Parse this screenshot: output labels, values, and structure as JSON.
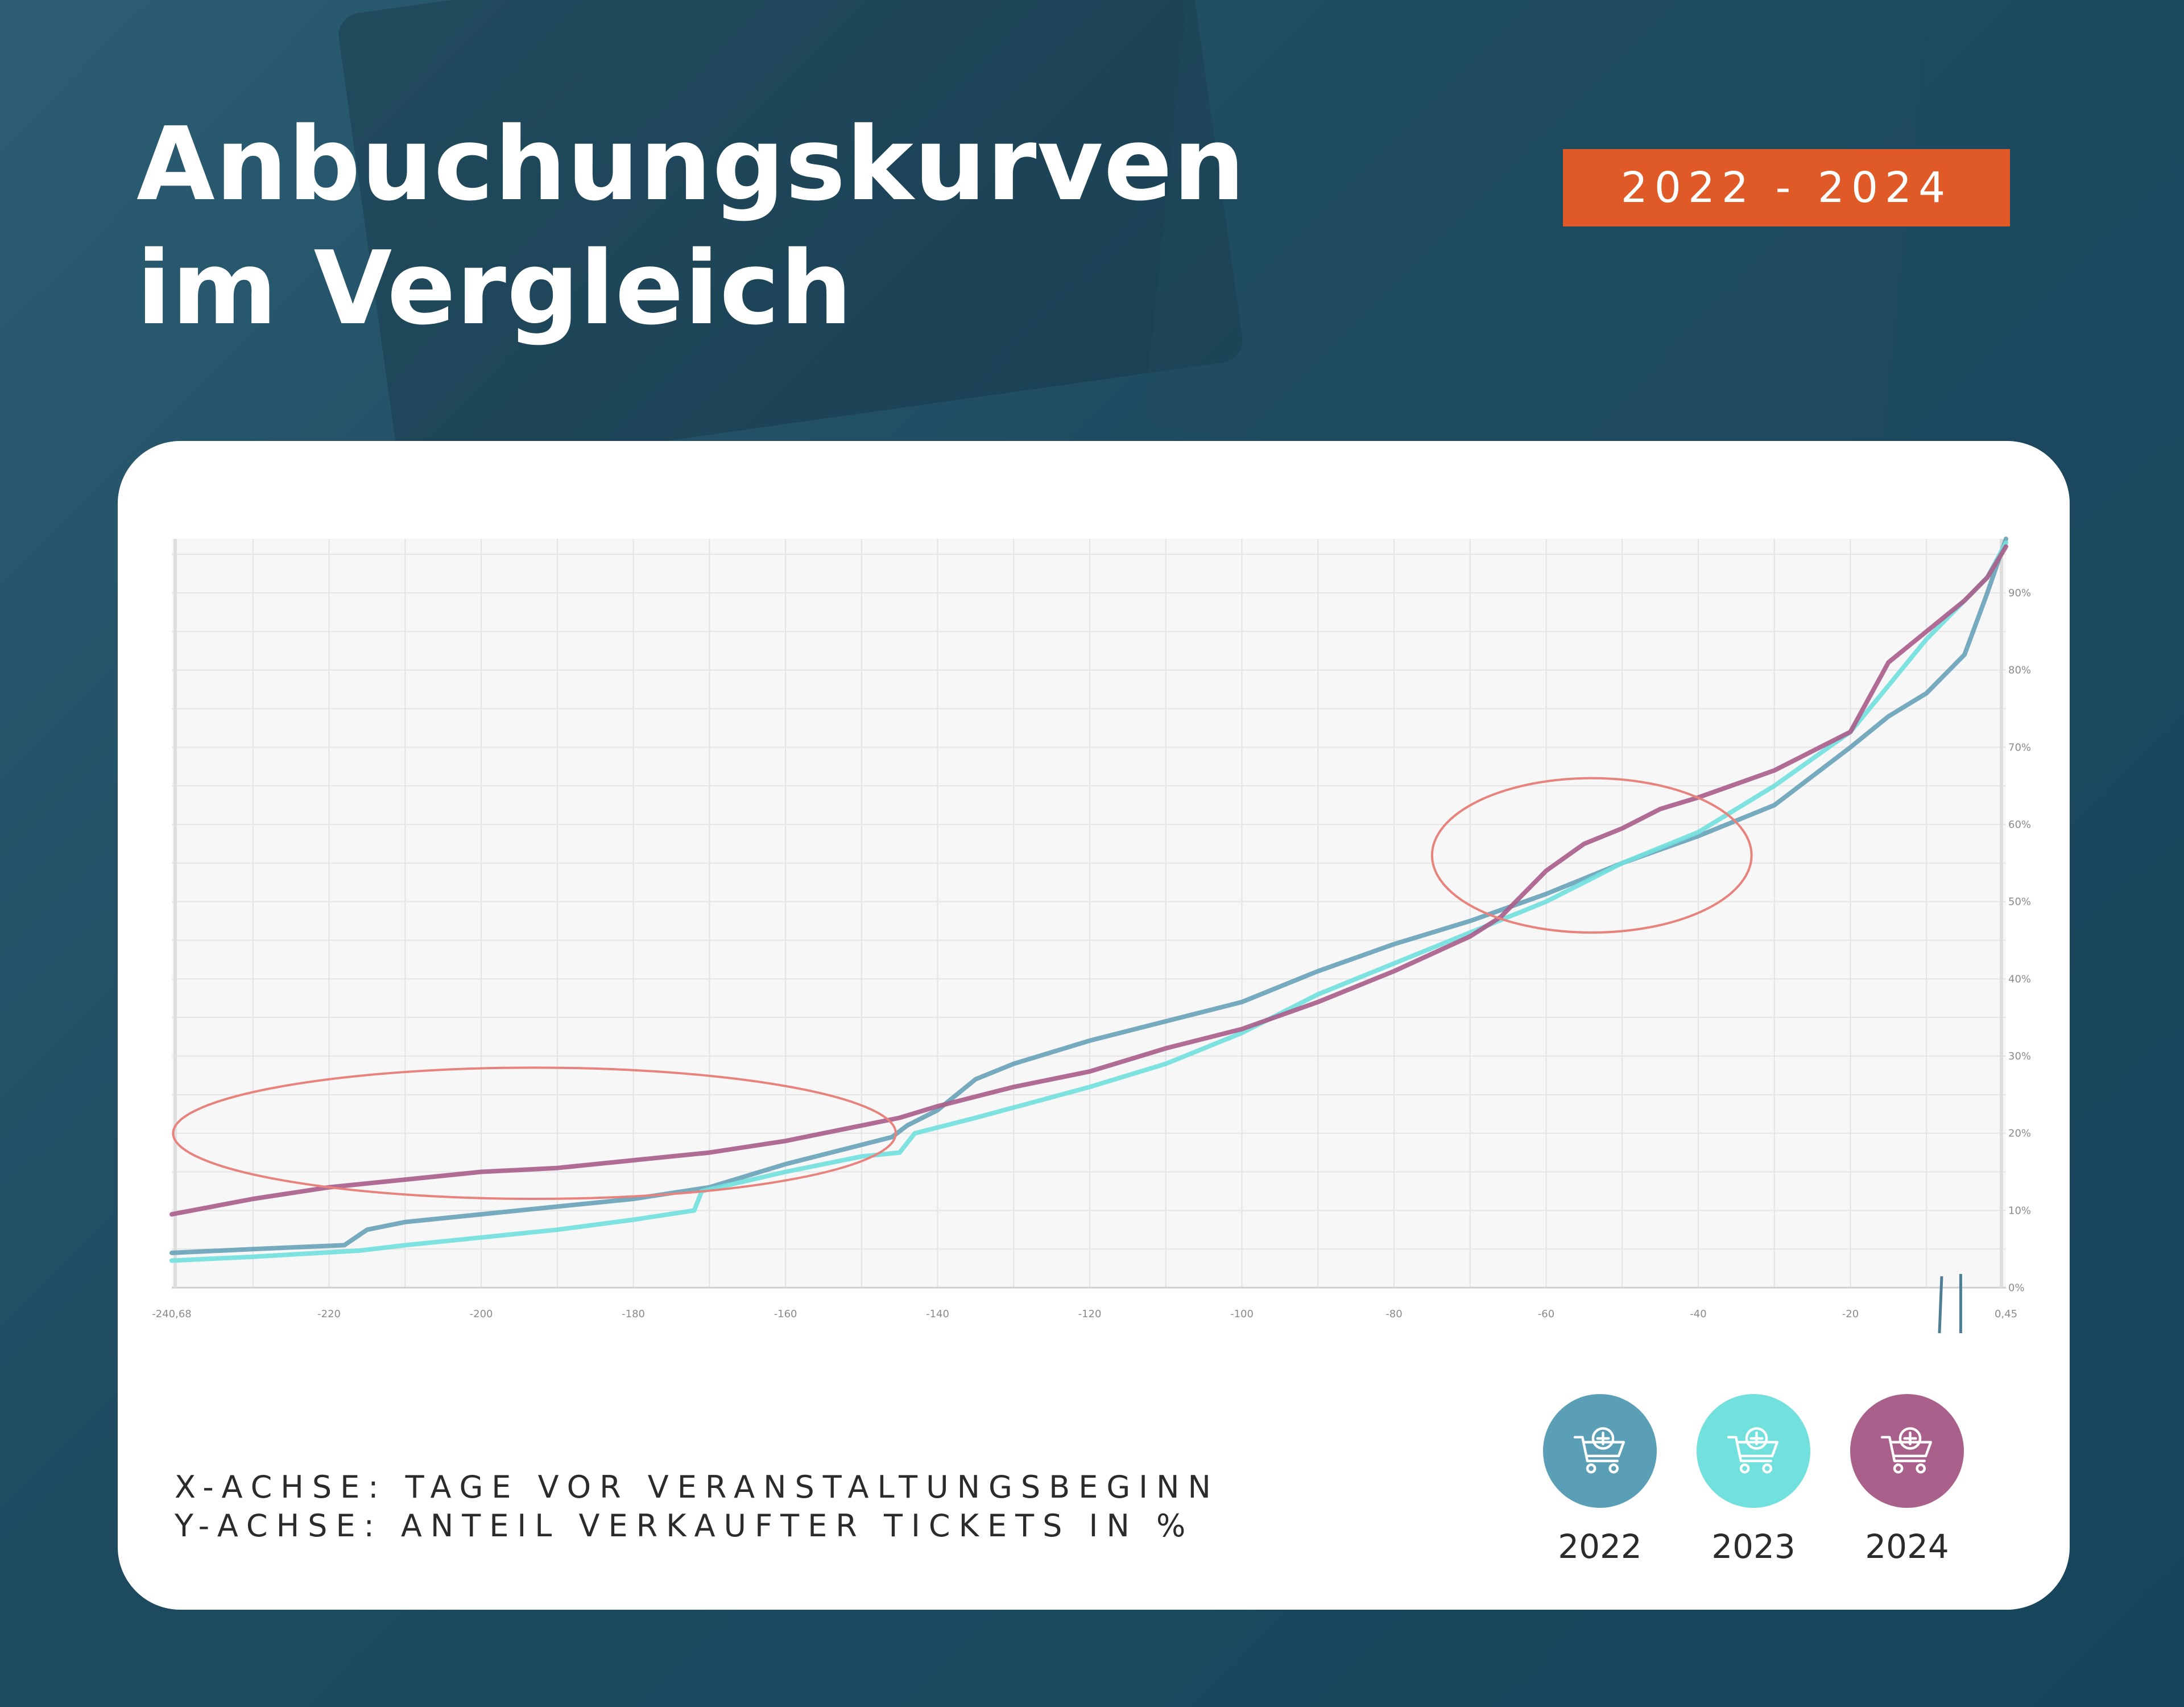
{
  "title_line1": "Anbuchungskurven",
  "title_line2": "im Vergleich",
  "badge": "2022 - 2024",
  "axis_note": {
    "x": "X-ACHSE: TAGE VOR VERANSTALTUNGSBEGINN",
    "y": "Y-ACHSE: ANTEIL VERKAUFTER TICKETS IN %"
  },
  "legend": [
    {
      "label": "2022",
      "color": "#5b9fb6",
      "icon": "cart-plus-icon"
    },
    {
      "label": "2023",
      "color": "#72e0dd",
      "icon": "cart-plus-icon"
    },
    {
      "label": "2024",
      "color": "#a9608b",
      "icon": "cart-plus-icon"
    }
  ],
  "chart_data": {
    "type": "line",
    "xlabel": "Tage vor Veranstaltungsbeginn",
    "ylabel": "Anteil verkaufter Tickets in %",
    "xlim": [
      -240.68,
      0.45
    ],
    "ylim": [
      0,
      97
    ],
    "x_ticks": [
      "-240,68",
      "-220",
      "-200",
      "-180",
      "-160",
      "-140",
      "-120",
      "-100",
      "-80",
      "-60",
      "-40",
      "-20",
      "0,45"
    ],
    "y_ticks": [
      "0%",
      "10%",
      "20%",
      "30%",
      "40%",
      "50%",
      "60%",
      "70%",
      "80%",
      "90%"
    ],
    "series": [
      {
        "name": "2022",
        "color": "#6aa3b8",
        "points": [
          [
            -240.68,
            4.5
          ],
          [
            -230,
            5
          ],
          [
            -218,
            5.5
          ],
          [
            -215,
            7.5
          ],
          [
            -210,
            8.5
          ],
          [
            -200,
            9.5
          ],
          [
            -190,
            10.5
          ],
          [
            -180,
            11.5
          ],
          [
            -170,
            13
          ],
          [
            -160,
            16
          ],
          [
            -150,
            18.5
          ],
          [
            -146,
            19.5
          ],
          [
            -144,
            21
          ],
          [
            -140,
            23
          ],
          [
            -135,
            27
          ],
          [
            -130,
            29
          ],
          [
            -120,
            32
          ],
          [
            -110,
            34.5
          ],
          [
            -100,
            37
          ],
          [
            -90,
            41
          ],
          [
            -80,
            44.5
          ],
          [
            -70,
            47.5
          ],
          [
            -60,
            51
          ],
          [
            -50,
            55
          ],
          [
            -40,
            58.5
          ],
          [
            -30,
            62.5
          ],
          [
            -20,
            70
          ],
          [
            -15,
            74
          ],
          [
            -10,
            77
          ],
          [
            -5,
            82
          ],
          [
            -2,
            90
          ],
          [
            0.45,
            97
          ]
        ]
      },
      {
        "name": "2023",
        "color": "#72e0dd",
        "points": [
          [
            -240.68,
            3.5
          ],
          [
            -230,
            4
          ],
          [
            -216,
            4.8
          ],
          [
            -210,
            5.5
          ],
          [
            -200,
            6.5
          ],
          [
            -190,
            7.5
          ],
          [
            -180,
            8.8
          ],
          [
            -172,
            10
          ],
          [
            -171,
            12.5
          ],
          [
            -160,
            15
          ],
          [
            -150,
            17
          ],
          [
            -145,
            17.5
          ],
          [
            -143,
            20
          ],
          [
            -135,
            22
          ],
          [
            -120,
            26
          ],
          [
            -110,
            29
          ],
          [
            -100,
            33
          ],
          [
            -90,
            38
          ],
          [
            -80,
            42
          ],
          [
            -70,
            46
          ],
          [
            -60,
            50
          ],
          [
            -50,
            55
          ],
          [
            -40,
            59
          ],
          [
            -30,
            65
          ],
          [
            -20,
            72
          ],
          [
            -15,
            78
          ],
          [
            -10,
            84
          ],
          [
            -5,
            89
          ],
          [
            -2,
            92
          ],
          [
            0.45,
            96.5
          ]
        ]
      },
      {
        "name": "2024",
        "color": "#a9608b",
        "points": [
          [
            -240.68,
            9.5
          ],
          [
            -230,
            11.5
          ],
          [
            -220,
            13
          ],
          [
            -210,
            14
          ],
          [
            -200,
            15
          ],
          [
            -190,
            15.5
          ],
          [
            -180,
            16.5
          ],
          [
            -170,
            17.5
          ],
          [
            -160,
            19
          ],
          [
            -150,
            21
          ],
          [
            -145,
            22
          ],
          [
            -140,
            23.5
          ],
          [
            -130,
            26
          ],
          [
            -120,
            28
          ],
          [
            -110,
            31
          ],
          [
            -100,
            33.5
          ],
          [
            -90,
            37
          ],
          [
            -80,
            41
          ],
          [
            -70,
            45.5
          ],
          [
            -66,
            48
          ],
          [
            -60,
            54
          ],
          [
            -55,
            57.5
          ],
          [
            -50,
            59.5
          ],
          [
            -45,
            62
          ],
          [
            -40,
            63.5
          ],
          [
            -30,
            67
          ],
          [
            -20,
            72
          ],
          [
            -15,
            81
          ],
          [
            -10,
            85
          ],
          [
            -5,
            89
          ],
          [
            -2,
            92
          ],
          [
            0.45,
            96
          ]
        ]
      }
    ],
    "annotations": [
      {
        "type": "ellipse",
        "color": "#e8827c",
        "cx": -193,
        "cy": 20,
        "rx": 47.5,
        "ry": 8.5
      },
      {
        "type": "ellipse",
        "color": "#e8827c",
        "cx": -54,
        "cy": 56,
        "rx": 21,
        "ry": 10
      }
    ]
  }
}
